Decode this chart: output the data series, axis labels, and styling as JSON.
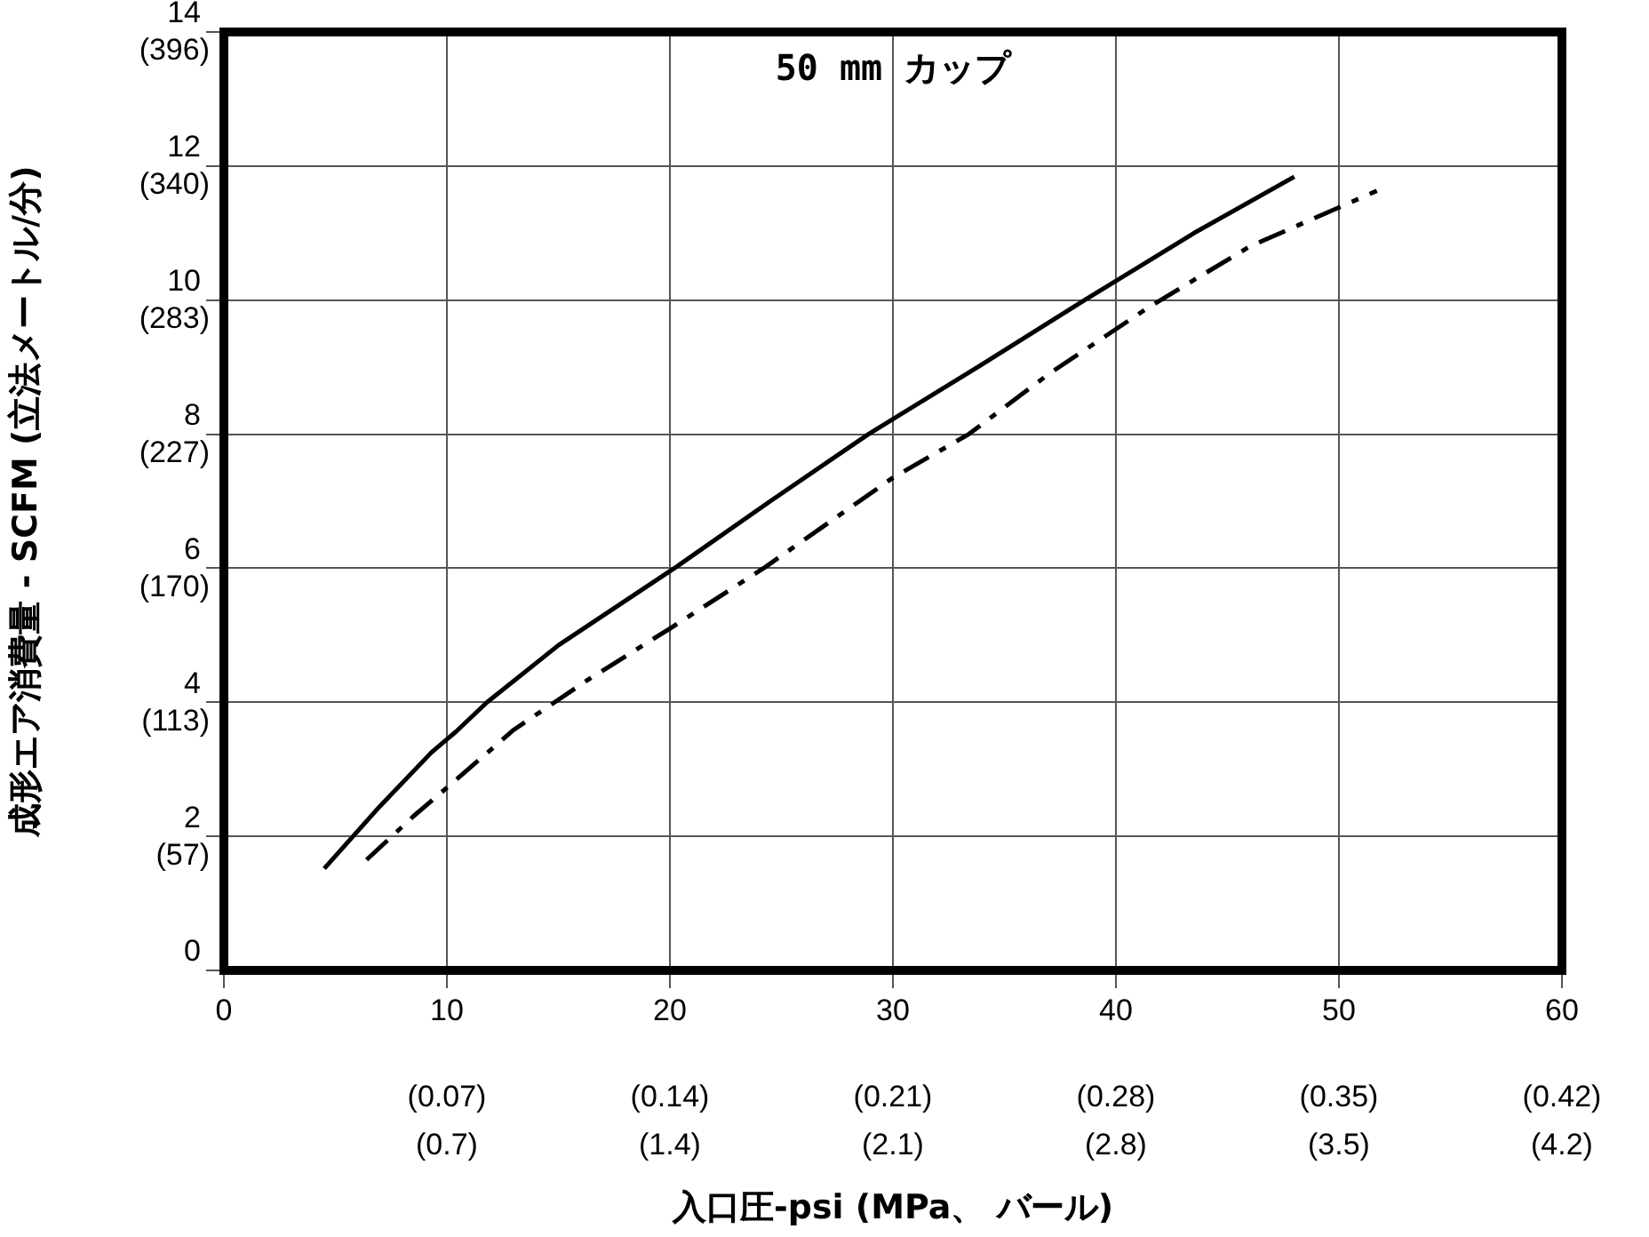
{
  "chart_data": {
    "type": "line",
    "title": "50 mm カップ",
    "xlabel": "入口圧-psi (MPa、 バール)",
    "y2label": "成形エア消費量 - SCFM (立法メートル/分)",
    "xlim": [
      0,
      60
    ],
    "xticks": [
      0,
      10,
      20,
      30,
      40,
      50,
      60
    ],
    "x2lim": [
      0,
      0.42
    ],
    "x2ticks": [
      {
        "value": 0.07,
        "label": "(0.07)"
      },
      {
        "value": 0.14,
        "label": "(0.14)"
      },
      {
        "value": 0.21,
        "label": "(0.21)"
      },
      {
        "value": 0.28,
        "label": "(0.28)"
      },
      {
        "value": 0.35,
        "label": "(0.35)"
      },
      {
        "value": 0.42,
        "label": "(0.42)"
      }
    ],
    "annotations": [
      "(0.7)",
      "(1.4)",
      "(2.1)",
      "(2.8)",
      "(3.5)",
      "(4.2)"
    ],
    "ylim": [
      0,
      14
    ],
    "yticks": [
      0,
      2,
      4,
      6,
      8,
      10,
      12,
      14
    ],
    "y2lim": [
      0,
      396.4
    ],
    "y2ticks": [
      {
        "value": 56.6,
        "label": "(57)"
      },
      {
        "value": 113.3,
        "label": "(113)"
      },
      {
        "value": 169.9,
        "label": "(170)"
      },
      {
        "value": 226.5,
        "label": "(227)"
      },
      {
        "value": 283.1,
        "label": "(283)"
      },
      {
        "value": 339.8,
        "label": "(340)"
      },
      {
        "value": 396.4,
        "label": "(396)"
      }
    ],
    "grid": true,
    "marker": "none",
    "series": [
      {
        "color": "#000000",
        "line_style": "solid",
        "x": [
          4.5,
          7,
          9.3,
          10.4,
          11.8,
          15,
          20.2,
          24.5,
          28.9,
          33.8,
          38.6,
          43.5,
          48
        ],
        "values": [
          1.52,
          2.45,
          3.25,
          3.56,
          4.0,
          4.85,
          6.0,
          7.0,
          8.0,
          9.0,
          10.0,
          11.0,
          11.84
        ]
      },
      {
        "color": "#000000",
        "line_style": "dashed",
        "x": [
          6.4,
          8.5,
          10.4,
          13,
          16.3,
          20,
          24.2,
          30,
          33.4,
          37,
          41.5,
          46,
          51.7
        ],
        "values": [
          1.65,
          2.3,
          2.84,
          3.59,
          4.33,
          5.1,
          6.0,
          7.35,
          8.0,
          8.9,
          9.9,
          10.8,
          11.63
        ]
      }
    ]
  }
}
